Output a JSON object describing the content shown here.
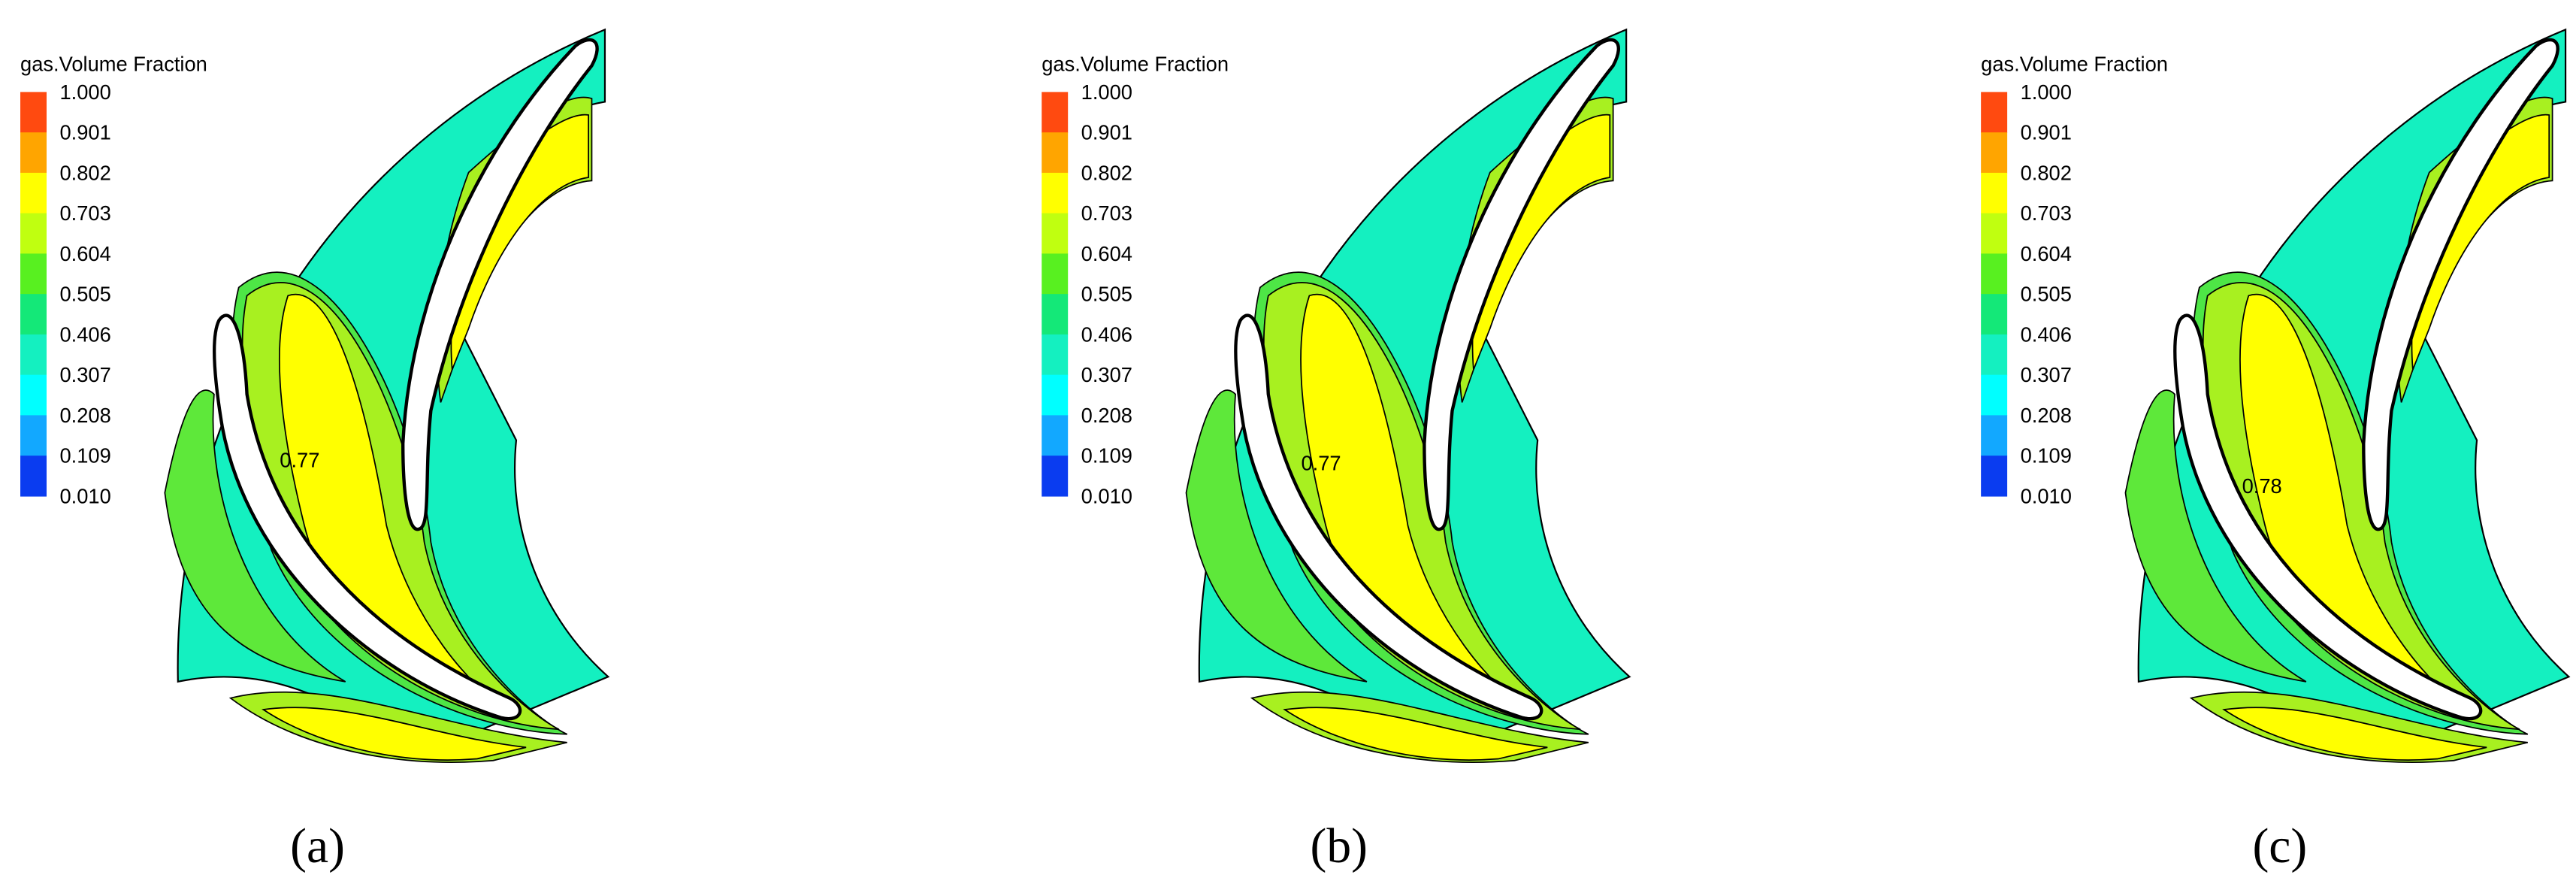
{
  "panels": [
    {
      "legend": {
        "title": "gas.Volume Fraction",
        "labels": [
          "1.000",
          "0.901",
          "0.802",
          "0.703",
          "0.604",
          "0.505",
          "0.406",
          "0.307",
          "0.208",
          "0.109",
          "0.010"
        ]
      },
      "annotation": "0.77",
      "caption": "(a)"
    },
    {
      "legend": {
        "title": "gas.Volume Fraction",
        "labels": [
          "1.000",
          "0.901",
          "0.802",
          "0.703",
          "0.604",
          "0.505",
          "0.406",
          "0.307",
          "0.208",
          "0.109",
          "0.010"
        ]
      },
      "annotation": "0.77",
      "caption": "(b)"
    },
    {
      "legend": {
        "title": "gas.Volume Fraction",
        "labels": [
          "1.000",
          "0.901",
          "0.802",
          "0.703",
          "0.604",
          "0.505",
          "0.406",
          "0.307",
          "0.208",
          "0.109",
          "0.010"
        ]
      },
      "annotation": "0.78",
      "caption": "(c)"
    }
  ]
}
